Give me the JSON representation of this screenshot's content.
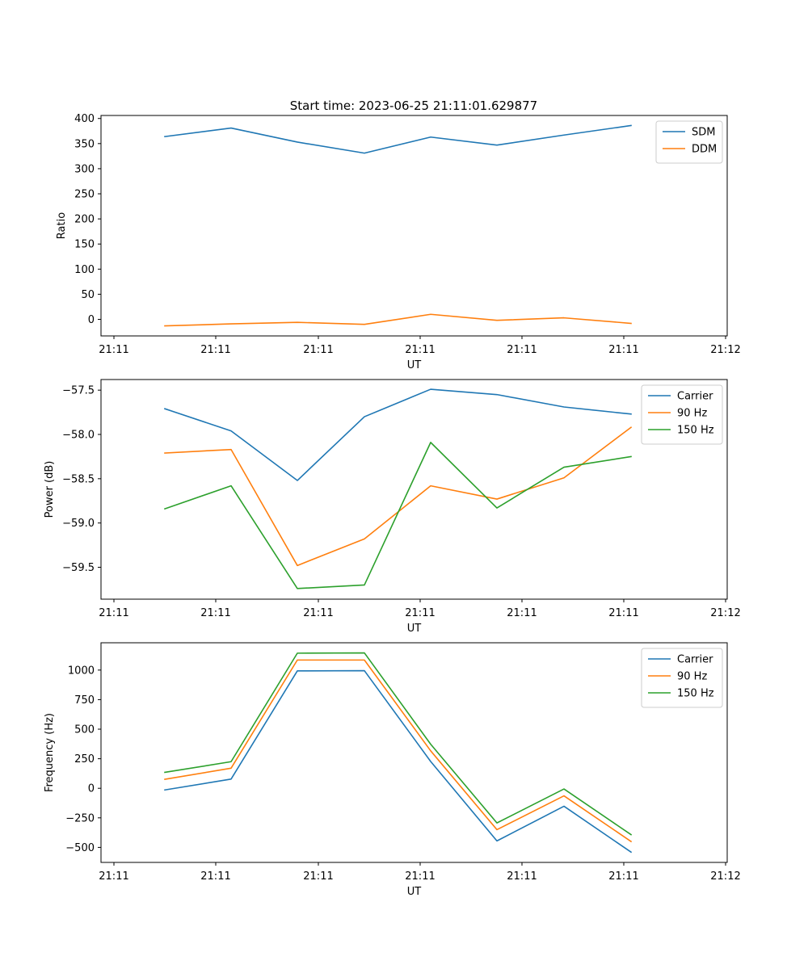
{
  "figure_title": "Start time: 2023-06-25 21:11:01.629877",
  "chart_data": [
    {
      "type": "line",
      "xlabel": "UT",
      "ylabel": "Ratio",
      "x_tick_labels": [
        "21:11",
        "21:11",
        "21:11",
        "21:11",
        "21:11",
        "21:11",
        "21:12"
      ],
      "ylim": [
        -33,
        406
      ],
      "yticks": [
        0,
        50,
        100,
        150,
        200,
        250,
        300,
        350,
        400
      ],
      "ytick_labels": [
        "0",
        "50",
        "100",
        "150",
        "200",
        "250",
        "300",
        "350",
        "400"
      ],
      "legend_position": "upper right",
      "grid": false,
      "series": [
        {
          "name": "SDM",
          "color": "#1f77b4",
          "values": [
            364,
            381,
            353,
            331,
            363,
            347,
            367,
            386
          ]
        },
        {
          "name": "DDM",
          "color": "#ff7f0e",
          "values": [
            -13,
            -9,
            -6,
            -10,
            10,
            -2,
            3,
            -8
          ]
        }
      ]
    },
    {
      "type": "line",
      "xlabel": "UT",
      "ylabel": "Power (dB)",
      "x_tick_labels": [
        "21:11",
        "21:11",
        "21:11",
        "21:11",
        "21:11",
        "21:11",
        "21:12"
      ],
      "ylim": [
        -59.86,
        -57.38
      ],
      "yticks": [
        -59.5,
        -59.0,
        -58.5,
        -58.0,
        -57.5
      ],
      "ytick_labels": [
        "−59.5",
        "−59.0",
        "−58.5",
        "−58.0",
        "−57.5"
      ],
      "legend_position": "upper right",
      "grid": false,
      "series": [
        {
          "name": "Carrier",
          "color": "#1f77b4",
          "values": [
            -57.71,
            -57.96,
            -58.52,
            -57.8,
            -57.49,
            -57.55,
            -57.69,
            -57.77
          ]
        },
        {
          "name": "90 Hz",
          "color": "#ff7f0e",
          "values": [
            -58.21,
            -58.17,
            -59.48,
            -59.18,
            -58.58,
            -58.73,
            -58.49,
            -57.92
          ]
        },
        {
          "name": "150 Hz",
          "color": "#2ca02c",
          "values": [
            -58.84,
            -58.58,
            -59.74,
            -59.7,
            -58.09,
            -58.83,
            -58.37,
            -58.25
          ]
        }
      ]
    },
    {
      "type": "line",
      "xlabel": "UT",
      "ylabel": "Frequency (Hz)",
      "x_tick_labels": [
        "21:11",
        "21:11",
        "21:11",
        "21:11",
        "21:11",
        "21:11",
        "21:12"
      ],
      "ylim": [
        -627,
        1231
      ],
      "yticks": [
        -500,
        -250,
        0,
        250,
        500,
        750,
        1000
      ],
      "ytick_labels": [
        "−500",
        "−250",
        "0",
        "250",
        "500",
        "750",
        "1000"
      ],
      "legend_position": "upper right",
      "grid": false,
      "series": [
        {
          "name": "Carrier",
          "color": "#1f77b4",
          "values": [
            -14,
            78,
            993,
            995,
            227,
            -445,
            -152,
            -540
          ]
        },
        {
          "name": "90 Hz",
          "color": "#ff7f0e",
          "values": [
            76,
            170,
            1085,
            1085,
            317,
            -350,
            -64,
            -450
          ]
        },
        {
          "name": "150 Hz",
          "color": "#2ca02c",
          "values": [
            135,
            225,
            1143,
            1145,
            373,
            -293,
            -6,
            -392
          ]
        }
      ]
    }
  ]
}
